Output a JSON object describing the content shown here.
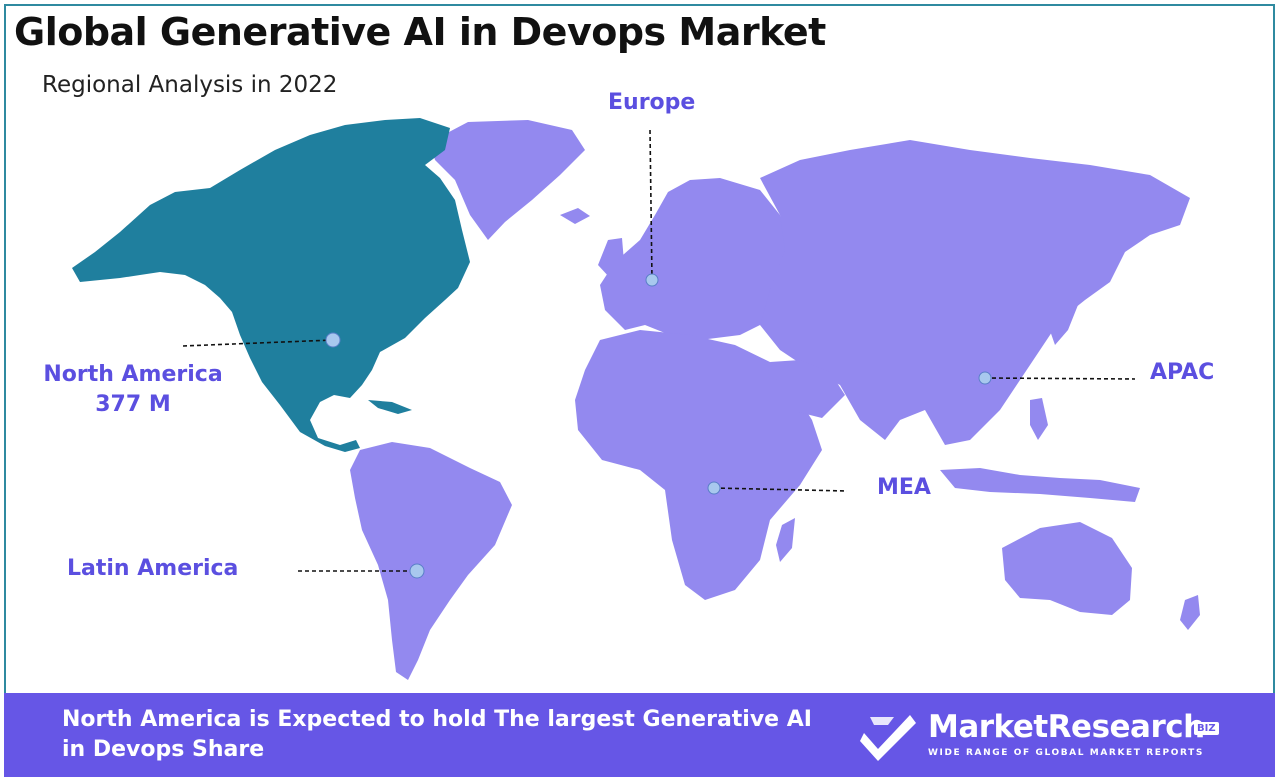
{
  "title": "Global Generative AI in Devops Market",
  "subtitle": "Regional Analysis in 2022",
  "colors": {
    "highlight_region": "#1f7f9e",
    "other_regions": "#9389ef",
    "label_text": "#5b4fe0",
    "footer_bg": "#6656e6",
    "frame_border": "#2f8aa0"
  },
  "regions": [
    {
      "name": "North America",
      "value": "377 M",
      "highlighted": true
    },
    {
      "name": "Europe",
      "value": "",
      "highlighted": false
    },
    {
      "name": "APAC",
      "value": "",
      "highlighted": false
    },
    {
      "name": "MEA",
      "value": "",
      "highlighted": false
    },
    {
      "name": "Latin America",
      "value": "",
      "highlighted": false
    }
  ],
  "footer": {
    "text": "North America is Expected to hold The largest Generative AI in Devops Share"
  },
  "brand": {
    "name": "MarketResearch",
    "badge": "BIZ",
    "tagline": "WIDE RANGE OF GLOBAL MARKET REPORTS",
    "icon": "checkmark-logo-icon"
  }
}
